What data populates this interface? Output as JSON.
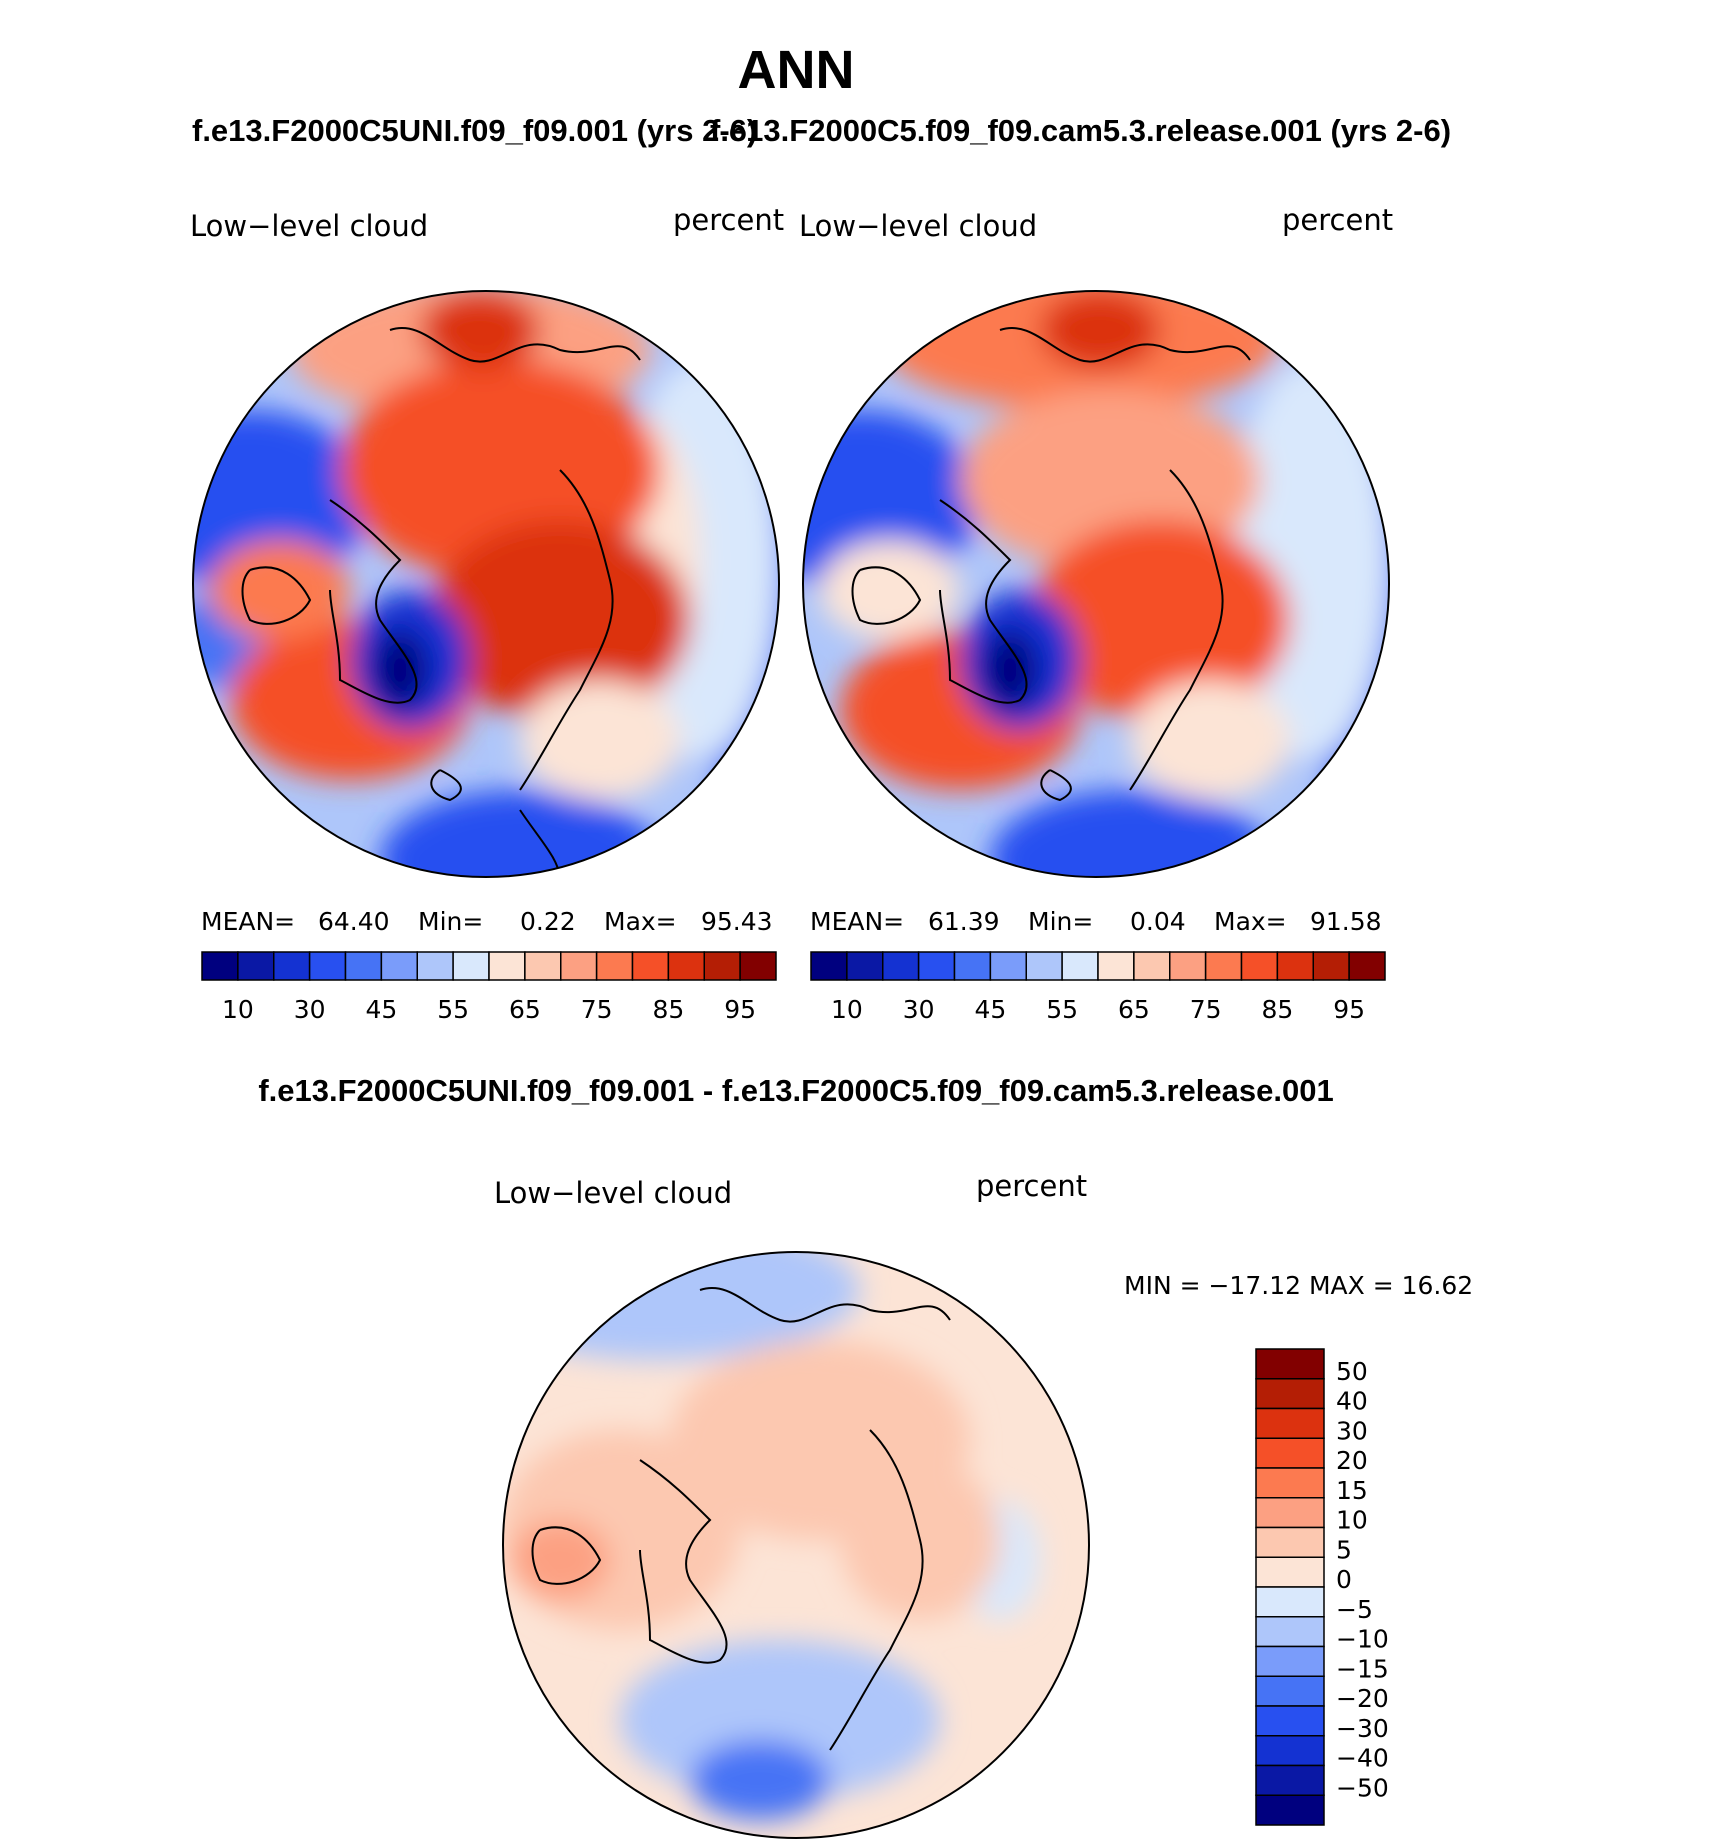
{
  "season_title": "ANN",
  "case1_title": "f.e13.F2000C5UNI.f09_f09.001 (yrs 2-6)",
  "case2_title": "f.e13.F2000C5.f09_f09.cam5.3.release.001 (yrs 2-6)",
  "diff_title": "f.e13.F2000C5UNI.f09_f09.001 - f.e13.F2000C5.f09_f09.cam5.3.release.001",
  "panel1": {
    "variable": "Low−level cloud",
    "units": "percent",
    "mean_label": "MEAN=",
    "mean_value": "64.40",
    "min_label": "Min=",
    "min_value": "0.22",
    "max_label": "Max=",
    "max_value": "95.43"
  },
  "panel2": {
    "variable": "Low−level cloud",
    "units": "percent",
    "mean_label": "MEAN=",
    "mean_value": "61.39",
    "min_label": "Min=",
    "min_value": "0.04",
    "max_label": "Max=",
    "max_value": "91.58"
  },
  "panel3": {
    "variable": "Low−level cloud",
    "units": "percent",
    "minmax_text": "MIN = −17.12 MAX =   16.62"
  },
  "abs_colorbar": {
    "colors": [
      "#00007f",
      "#0a18a5",
      "#1432d2",
      "#2850f0",
      "#4673f5",
      "#7a9cfa",
      "#aec6fa",
      "#d9e8fc",
      "#fce4d6",
      "#fcc8b0",
      "#fca082",
      "#fc7a50",
      "#f55028",
      "#dc320f",
      "#b41e05",
      "#820000"
    ],
    "tick_labels": [
      "10",
      "30",
      "45",
      "55",
      "65",
      "75",
      "85",
      "95"
    ]
  },
  "diff_colorbar": {
    "colors": [
      "#00007f",
      "#0a18a5",
      "#1432d2",
      "#2850f0",
      "#4673f5",
      "#7a9cfa",
      "#aec6fa",
      "#d9e8fc",
      "#fce4d6",
      "#fcc8b0",
      "#fca082",
      "#fc7a50",
      "#f55028",
      "#dc320f",
      "#b41e05",
      "#820000"
    ],
    "tick_labels": [
      "50",
      "40",
      "30",
      "20",
      "15",
      "10",
      "5",
      "0",
      "−5",
      "−10",
      "−15",
      "−20",
      "−30",
      "−40",
      "−50"
    ]
  },
  "map_colors": {
    "ocean_blue_deep": "#1432d2",
    "blue": "#4673f5",
    "light_blue": "#aec6fa",
    "pale_blue": "#d9e8fc",
    "peach": "#fce4d6",
    "salmon": "#fca082",
    "orange": "#fc7a50",
    "red_orange": "#f55028",
    "dark_red": "#dc320f"
  }
}
